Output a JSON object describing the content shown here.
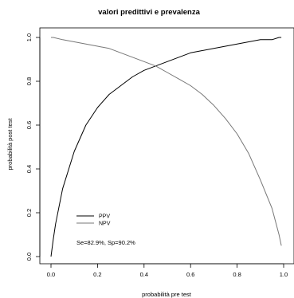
{
  "chart_data": {
    "type": "line",
    "title": "valori predittivi e prevalenza",
    "xlabel": "probabilità pre test",
    "ylabel": "probabilità post test",
    "xlim": [
      0,
      1
    ],
    "ylim": [
      0,
      1
    ],
    "xticks": [
      0,
      0.2,
      0.4,
      0.6,
      0.8,
      1
    ],
    "yticks": [
      0,
      0.2,
      0.4,
      0.6,
      0.8,
      1
    ],
    "xtick_labels": [
      "0.0",
      "0.2",
      "0.4",
      "0.6",
      "0.8",
      "1.0"
    ],
    "ytick_labels": [
      "0.0",
      "0.2",
      "0.4",
      "0.6",
      "0.8",
      "1.0"
    ],
    "grid": false,
    "legend_position": "bottom-left",
    "annotation": "Se=82.9%, Sp=90.2%",
    "series": [
      {
        "name": "PPV",
        "color": "#000000",
        "x": [
          0.0,
          0.01,
          0.02,
          0.05,
          0.1,
          0.15,
          0.2,
          0.25,
          0.3,
          0.35,
          0.4,
          0.45,
          0.5,
          0.55,
          0.6,
          0.65,
          0.7,
          0.75,
          0.8,
          0.85,
          0.9,
          0.95,
          0.98,
          0.99
        ],
        "values": [
          0.0,
          0.08,
          0.15,
          0.31,
          0.48,
          0.6,
          0.68,
          0.74,
          0.78,
          0.82,
          0.85,
          0.87,
          0.89,
          0.91,
          0.93,
          0.94,
          0.95,
          0.96,
          0.97,
          0.98,
          0.99,
          0.99,
          1.0,
          1.0
        ]
      },
      {
        "name": "NPV",
        "color": "#777777",
        "x": [
          0.0,
          0.01,
          0.05,
          0.1,
          0.15,
          0.2,
          0.25,
          0.3,
          0.35,
          0.4,
          0.45,
          0.5,
          0.55,
          0.6,
          0.65,
          0.7,
          0.75,
          0.8,
          0.85,
          0.9,
          0.95,
          0.98,
          0.99
        ],
        "values": [
          1.0,
          1.0,
          0.99,
          0.98,
          0.97,
          0.96,
          0.95,
          0.93,
          0.91,
          0.89,
          0.87,
          0.84,
          0.81,
          0.78,
          0.74,
          0.69,
          0.63,
          0.56,
          0.47,
          0.35,
          0.22,
          0.1,
          0.05
        ]
      }
    ]
  }
}
